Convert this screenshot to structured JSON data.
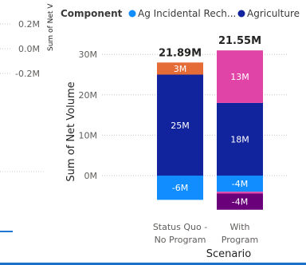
{
  "left_panel": {
    "yaxis_title": "Sum of Net V",
    "ticks": [
      "0.2M",
      "0.0M",
      "-0.2M"
    ],
    "line_color": "#1f77d0"
  },
  "legend": {
    "title": "Component",
    "items": [
      {
        "label": "Ag Incidental Rech...",
        "color": "#118dff"
      },
      {
        "label": "Agriculture",
        "color": "#12239e"
      }
    ]
  },
  "chart_data": {
    "type": "bar",
    "stacked": true,
    "title": "",
    "xlabel": "Scenario",
    "ylabel": "Sum of Net Volume",
    "ylim": [
      -8,
      34
    ],
    "yticks": [
      "30M",
      "20M",
      "10M",
      "0M"
    ],
    "ytick_values": [
      30,
      20,
      10,
      0
    ],
    "categories": [
      {
        "lines": [
          "Status Quo -",
          "No Program"
        ]
      },
      {
        "lines": [
          "With",
          "Program"
        ]
      }
    ],
    "totals": [
      "21.89M",
      "21.55M"
    ],
    "units": "M",
    "stacks": [
      {
        "category_index": 0,
        "segments": [
          {
            "value": -6,
            "label": "-6M",
            "color": "#118dff"
          },
          {
            "value": 25,
            "label": "25M",
            "color": "#12239e"
          },
          {
            "value": 3,
            "label": "3M",
            "color": "#e66c37"
          }
        ]
      },
      {
        "category_index": 1,
        "segments": [
          {
            "value": -4,
            "label": "-4M",
            "color": "#118dff"
          },
          {
            "value": -0.45,
            "label": "",
            "color": "#e044a7"
          },
          {
            "value": -4,
            "label": "-4M",
            "color": "#6b007b"
          },
          {
            "value": 18,
            "label": "18M",
            "color": "#12239e"
          },
          {
            "value": 13,
            "label": "13M",
            "color": "#e044a7"
          }
        ]
      }
    ]
  }
}
